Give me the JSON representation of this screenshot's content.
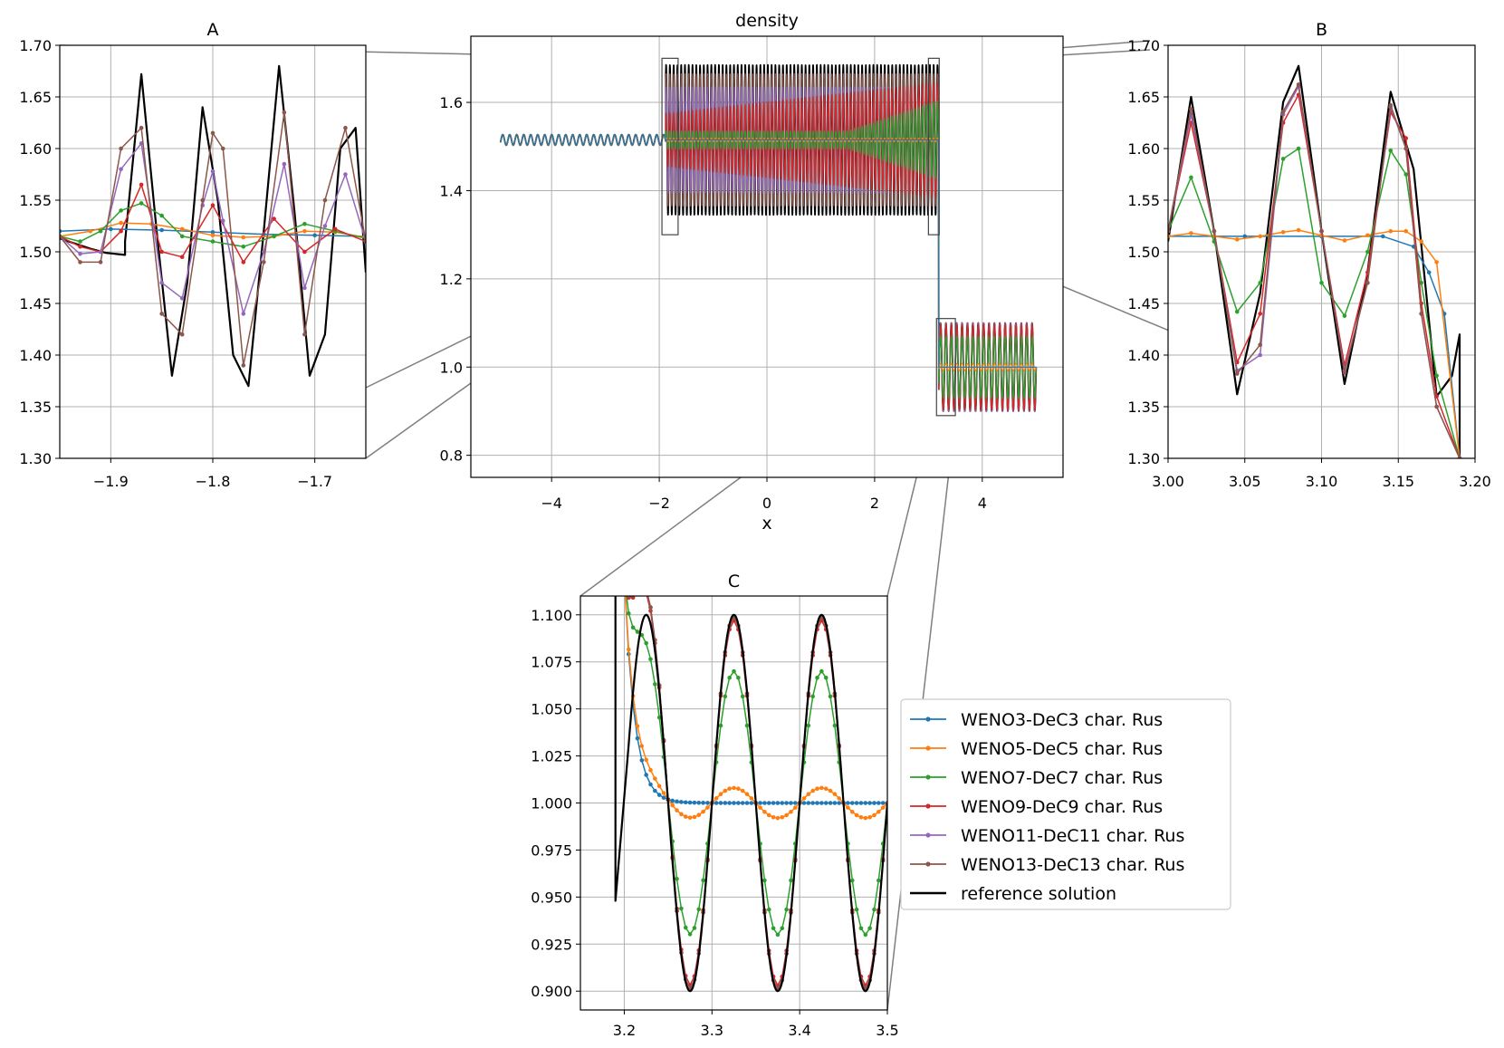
{
  "chart_data": [
    {
      "type": "line",
      "title": "density",
      "xlabel": "x",
      "ylabel": "",
      "xlim": [
        -5.5,
        5.5
      ],
      "ylim": [
        0.75,
        1.75
      ],
      "xticks": [
        -4,
        -2,
        0,
        2,
        4
      ],
      "xtick_labels": [
        "−4",
        "−2",
        "0",
        "2",
        "4"
      ],
      "yticks": [
        0.8,
        1.0,
        1.2,
        1.4,
        1.6
      ],
      "ytick_labels": [
        "0.8",
        "1.0",
        "1.2",
        "1.4",
        "1.6"
      ],
      "grid": true,
      "description_of_data": "Shu-Osher type density: ~1.515 for x<-1.9 with small oscillation, oscillating 1.35-1.68 between -1.9 and 3.2, oscillating 0.9-1.1 between 3.2 and 5",
      "zoom_boxes": [
        {
          "label": "A",
          "xlim": [
            -1.95,
            -1.65
          ],
          "ylim": [
            1.3,
            1.7
          ]
        },
        {
          "label": "B",
          "xlim": [
            3.0,
            3.2
          ],
          "ylim": [
            1.3,
            1.7
          ]
        },
        {
          "label": "C",
          "xlim": [
            3.15,
            3.5
          ],
          "ylim": [
            0.89,
            1.11
          ]
        }
      ]
    },
    {
      "type": "line",
      "title": "A",
      "xlim": [
        -1.95,
        -1.65
      ],
      "ylim": [
        1.3,
        1.7
      ],
      "xticks": [
        -1.9,
        -1.8,
        -1.7
      ],
      "xtick_labels": [
        "−1.9",
        "−1.8",
        "−1.7"
      ],
      "yticks": [
        1.3,
        1.35,
        1.4,
        1.45,
        1.5,
        1.55,
        1.6,
        1.65,
        1.7
      ],
      "ytick_labels": [
        "1.30",
        "1.35",
        "1.40",
        "1.45",
        "1.50",
        "1.55",
        "1.60",
        "1.65",
        "1.70"
      ],
      "grid": true,
      "series": [
        {
          "name": "reference solution",
          "x": [
            -1.95,
            -1.935,
            -1.92,
            -1.905,
            -1.886,
            -1.886,
            -1.87,
            -1.855,
            -1.84,
            -1.825,
            -1.81,
            -1.795,
            -1.78,
            -1.765,
            -1.75,
            -1.735,
            -1.72,
            -1.705,
            -1.69,
            -1.675,
            -1.66,
            -1.65
          ],
          "y": [
            1.513,
            1.508,
            1.503,
            1.499,
            1.497,
            1.51,
            1.672,
            1.52,
            1.38,
            1.47,
            1.64,
            1.55,
            1.4,
            1.37,
            1.52,
            1.68,
            1.54,
            1.38,
            1.42,
            1.6,
            1.62,
            1.48
          ]
        },
        {
          "name": "WENO3-DeC3 char. Rus",
          "x": [
            -1.95,
            -1.9,
            -1.85,
            -1.8,
            -1.75,
            -1.7,
            -1.65
          ],
          "y": [
            1.52,
            1.522,
            1.521,
            1.519,
            1.517,
            1.516,
            1.515
          ]
        },
        {
          "name": "WENO5-DeC5 char. Rus",
          "x": [
            -1.95,
            -1.92,
            -1.89,
            -1.86,
            -1.83,
            -1.8,
            -1.77,
            -1.74,
            -1.71,
            -1.68,
            -1.65
          ],
          "y": [
            1.515,
            1.52,
            1.528,
            1.527,
            1.522,
            1.516,
            1.514,
            1.515,
            1.52,
            1.519,
            1.514
          ]
        },
        {
          "name": "WENO7-DeC7 char. Rus",
          "x": [
            -1.95,
            -1.93,
            -1.91,
            -1.89,
            -1.87,
            -1.85,
            -1.83,
            -1.8,
            -1.77,
            -1.74,
            -1.71,
            -1.68,
            -1.65
          ],
          "y": [
            1.515,
            1.51,
            1.52,
            1.54,
            1.547,
            1.535,
            1.515,
            1.51,
            1.505,
            1.515,
            1.527,
            1.52,
            1.513
          ]
        },
        {
          "name": "WENO9-DeC9 char. Rus",
          "x": [
            -1.95,
            -1.93,
            -1.91,
            -1.89,
            -1.87,
            -1.85,
            -1.83,
            -1.8,
            -1.77,
            -1.74,
            -1.71,
            -1.68,
            -1.65
          ],
          "y": [
            1.515,
            1.505,
            1.5,
            1.52,
            1.565,
            1.5,
            1.495,
            1.545,
            1.49,
            1.532,
            1.5,
            1.522,
            1.51
          ]
        },
        {
          "name": "WENO11-DeC11 char. Rus",
          "x": [
            -1.95,
            -1.93,
            -1.91,
            -1.89,
            -1.87,
            -1.85,
            -1.83,
            -1.81,
            -1.8,
            -1.79,
            -1.77,
            -1.75,
            -1.73,
            -1.71,
            -1.69,
            -1.67,
            -1.65
          ],
          "y": [
            1.515,
            1.498,
            1.5,
            1.58,
            1.605,
            1.47,
            1.455,
            1.545,
            1.578,
            1.53,
            1.44,
            1.5,
            1.585,
            1.465,
            1.525,
            1.575,
            1.51
          ]
        },
        {
          "name": "WENO13-DeC13 char. Rus",
          "x": [
            -1.95,
            -1.93,
            -1.91,
            -1.89,
            -1.87,
            -1.85,
            -1.83,
            -1.81,
            -1.8,
            -1.79,
            -1.77,
            -1.75,
            -1.73,
            -1.71,
            -1.69,
            -1.67,
            -1.65
          ],
          "y": [
            1.515,
            1.49,
            1.49,
            1.6,
            1.62,
            1.44,
            1.42,
            1.55,
            1.615,
            1.6,
            1.39,
            1.49,
            1.635,
            1.42,
            1.55,
            1.62,
            1.51
          ]
        }
      ]
    },
    {
      "type": "line",
      "title": "B",
      "xlim": [
        3.0,
        3.2
      ],
      "ylim": [
        1.3,
        1.7
      ],
      "xticks": [
        3.0,
        3.05,
        3.1,
        3.15,
        3.2
      ],
      "xtick_labels": [
        "3.00",
        "3.05",
        "3.10",
        "3.15",
        "3.20"
      ],
      "yticks": [
        1.3,
        1.35,
        1.4,
        1.45,
        1.5,
        1.55,
        1.6,
        1.65,
        1.7
      ],
      "ytick_labels": [
        "1.30",
        "1.35",
        "1.40",
        "1.45",
        "1.50",
        "1.55",
        "1.60",
        "1.65",
        "1.70"
      ],
      "grid": true,
      "series": [
        {
          "name": "reference solution",
          "x": [
            3.0,
            3.015,
            3.03,
            3.045,
            3.06,
            3.075,
            3.085,
            3.1,
            3.115,
            3.13,
            3.145,
            3.16,
            3.175,
            3.185,
            3.19,
            3.19
          ],
          "y": [
            1.51,
            1.65,
            1.52,
            1.362,
            1.46,
            1.645,
            1.68,
            1.52,
            1.372,
            1.48,
            1.655,
            1.58,
            1.36,
            1.38,
            1.42,
            1.3
          ]
        },
        {
          "name": "WENO3-DeC3 char. Rus",
          "x": [
            3.0,
            3.05,
            3.1,
            3.14,
            3.16,
            3.17,
            3.18,
            3.19
          ],
          "y": [
            1.515,
            1.515,
            1.515,
            1.515,
            1.505,
            1.48,
            1.44,
            1.3
          ]
        },
        {
          "name": "WENO5-DeC5 char. Rus",
          "x": [
            3.0,
            3.015,
            3.03,
            3.045,
            3.06,
            3.075,
            3.085,
            3.1,
            3.115,
            3.13,
            3.145,
            3.155,
            3.165,
            3.175,
            3.19
          ],
          "y": [
            1.515,
            1.518,
            1.515,
            1.512,
            1.515,
            1.519,
            1.521,
            1.516,
            1.511,
            1.516,
            1.52,
            1.52,
            1.51,
            1.49,
            1.3
          ]
        },
        {
          "name": "WENO7-DeC7 char. Rus",
          "x": [
            3.0,
            3.015,
            3.03,
            3.045,
            3.06,
            3.075,
            3.085,
            3.1,
            3.115,
            3.13,
            3.145,
            3.155,
            3.165,
            3.175,
            3.19
          ],
          "y": [
            1.52,
            1.572,
            1.51,
            1.442,
            1.47,
            1.59,
            1.6,
            1.47,
            1.438,
            1.5,
            1.598,
            1.575,
            1.47,
            1.38,
            1.3
          ]
        },
        {
          "name": "WENO9-DeC9 char. Rus",
          "x": [
            3.0,
            3.015,
            3.03,
            3.045,
            3.06,
            3.075,
            3.085,
            3.1,
            3.115,
            3.13,
            3.145,
            3.155,
            3.165,
            3.175,
            3.19
          ],
          "y": [
            1.52,
            1.625,
            1.52,
            1.393,
            1.44,
            1.625,
            1.652,
            1.52,
            1.39,
            1.48,
            1.635,
            1.61,
            1.45,
            1.36,
            1.3
          ]
        },
        {
          "name": "WENO11-DeC11 char. Rus",
          "x": [
            3.0,
            3.015,
            3.03,
            3.045,
            3.06,
            3.075,
            3.085,
            3.1,
            3.115,
            3.13,
            3.145,
            3.155,
            3.165,
            3.175,
            3.19
          ],
          "y": [
            1.52,
            1.633,
            1.52,
            1.385,
            1.4,
            1.633,
            1.66,
            1.52,
            1.385,
            1.47,
            1.64,
            1.6,
            1.44,
            1.35,
            1.3
          ]
        },
        {
          "name": "WENO13-DeC13 char. Rus",
          "x": [
            3.0,
            3.015,
            3.03,
            3.045,
            3.06,
            3.075,
            3.085,
            3.1,
            3.115,
            3.13,
            3.145,
            3.155,
            3.165,
            3.175,
            3.19
          ],
          "y": [
            1.52,
            1.638,
            1.52,
            1.382,
            1.41,
            1.636,
            1.662,
            1.52,
            1.383,
            1.47,
            1.642,
            1.6,
            1.44,
            1.35,
            1.3
          ]
        }
      ]
    },
    {
      "type": "line",
      "title": "C",
      "xlim": [
        3.15,
        3.5
      ],
      "ylim": [
        0.89,
        1.11
      ],
      "xticks": [
        3.2,
        3.3,
        3.4,
        3.5
      ],
      "xtick_labels": [
        "3.2",
        "3.3",
        "3.4",
        "3.5"
      ],
      "yticks": [
        0.9,
        0.925,
        0.95,
        0.975,
        1.0,
        1.025,
        1.05,
        1.075,
        1.1
      ],
      "ytick_labels": [
        "0.900",
        "0.925",
        "0.950",
        "0.975",
        "1.000",
        "1.025",
        "1.050",
        "1.075",
        "1.100"
      ],
      "grid": true,
      "wave": {
        "x_start": 3.2,
        "x_end": 3.5,
        "period": 0.1,
        "peak_x": 3.225,
        "mean": 1.0
      },
      "series": [
        {
          "name": "WENO3-DeC3 char. Rus",
          "amplitude": 0.0
        },
        {
          "name": "WENO5-DeC5 char. Rus",
          "amplitude": 0.008
        },
        {
          "name": "WENO7-DeC7 char. Rus",
          "amplitude": 0.07
        },
        {
          "name": "WENO9-DeC9 char. Rus",
          "amplitude": 0.097
        },
        {
          "name": "WENO11-DeC11 char. Rus",
          "amplitude": 0.099
        },
        {
          "name": "WENO13-DeC13 char. Rus",
          "amplitude": 0.099
        },
        {
          "name": "reference solution",
          "amplitude": 0.1,
          "shock": {
            "x": 3.19,
            "y_low": 0.948
          }
        }
      ]
    }
  ],
  "legend": {
    "placement": "lower-right of panel C",
    "entries": [
      {
        "label": "WENO3-DeC3 char. Rus",
        "color": "#1f77b4",
        "marker": true
      },
      {
        "label": "WENO5-DeC5 char. Rus",
        "color": "#ff7f0e",
        "marker": true
      },
      {
        "label": "WENO7-DeC7 char. Rus",
        "color": "#2ca02c",
        "marker": true
      },
      {
        "label": "WENO9-DeC9 char. Rus",
        "color": "#d62728",
        "marker": true
      },
      {
        "label": "WENO11-DeC11 char. Rus",
        "color": "#9467bd",
        "marker": true
      },
      {
        "label": "WENO13-DeC13 char. Rus",
        "color": "#8c564b",
        "marker": true
      },
      {
        "label": "reference solution",
        "color": "#000000",
        "marker": false
      }
    ]
  }
}
